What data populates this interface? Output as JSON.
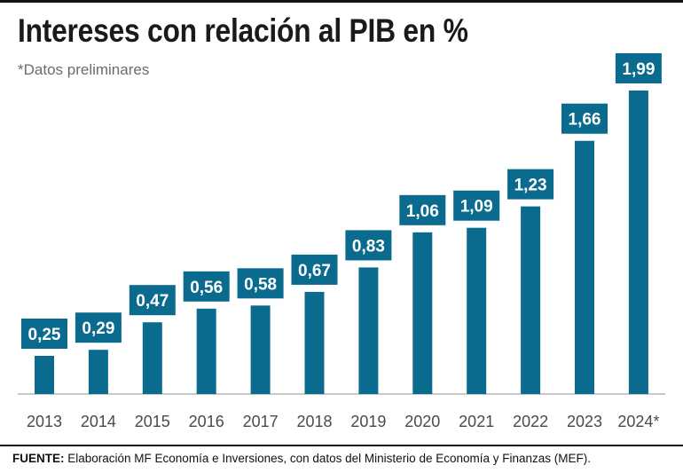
{
  "title": "Intereses con relación al PIB en %",
  "subtitle": "*Datos preliminares",
  "source": {
    "label": "FUENTE:",
    "text": " Elaboración MF Economía e Inversiones, con datos del Ministerio de Economía y Finanzas (MEF)."
  },
  "colors": {
    "bar": "#0a6b8e",
    "label_text": "#ffffff"
  },
  "chart_data": {
    "type": "bar",
    "title": "Intereses con relación al PIB en %",
    "subtitle": "*Datos preliminares",
    "categories": [
      "2013",
      "2014",
      "2015",
      "2016",
      "2017",
      "2018",
      "2019",
      "2020",
      "2021",
      "2022",
      "2023",
      "2024*"
    ],
    "values": [
      0.25,
      0.29,
      0.47,
      0.56,
      0.58,
      0.67,
      0.83,
      1.06,
      1.09,
      1.23,
      1.66,
      1.99
    ],
    "value_labels": [
      "0,25",
      "0,29",
      "0,47",
      "0,56",
      "0,58",
      "0,67",
      "0,83",
      "1,06",
      "1,09",
      "1,23",
      "1,66",
      "1,99"
    ],
    "ylim": [
      0,
      1.99
    ],
    "grid": false,
    "legend": "none"
  }
}
